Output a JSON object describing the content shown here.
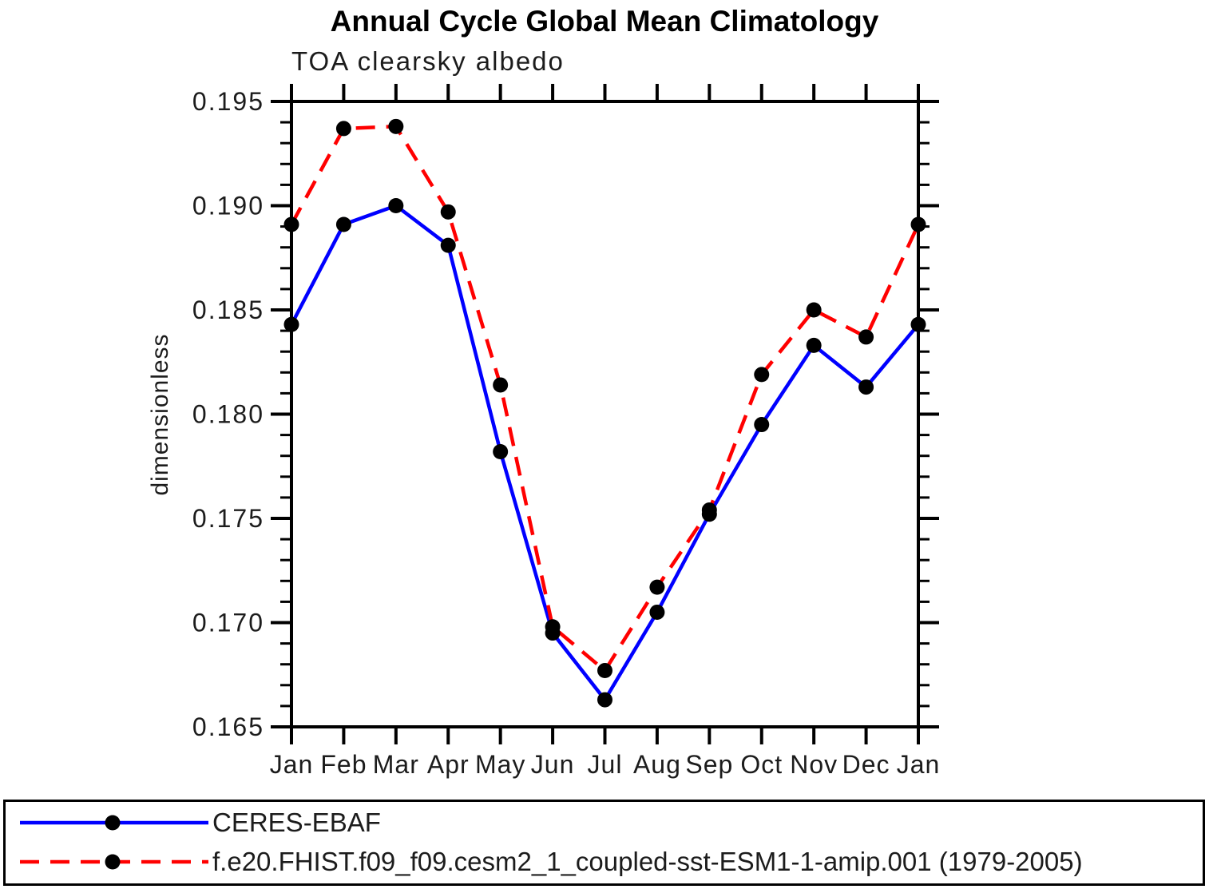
{
  "chart_data": {
    "type": "line",
    "title": "Annual Cycle Global Mean Climatology",
    "subtitle": "TOA clearsky albedo",
    "ylabel": "dimensionless",
    "xlabel": "",
    "categories": [
      "Jan",
      "Feb",
      "Mar",
      "Apr",
      "May",
      "Jun",
      "Jul",
      "Aug",
      "Sep",
      "Oct",
      "Nov",
      "Dec",
      "Jan"
    ],
    "ylim": [
      0.165,
      0.195
    ],
    "ytick_major_interval": 0.005,
    "ytick_minor_interval": 0.001,
    "ytick_labels": [
      "0.195",
      "0.190",
      "0.185",
      "0.180",
      "0.175",
      "0.170",
      "0.165"
    ],
    "grid": "off",
    "legend_position": "bottom",
    "marker": "filled-circle",
    "marker_color": "#000000",
    "axis_color": "#000000",
    "series": [
      {
        "name": "CERES-EBAF",
        "color": "#0000ff",
        "style": "solid",
        "values": [
          0.1843,
          0.1891,
          0.19,
          0.1881,
          0.1782,
          0.1695,
          0.1663,
          0.1705,
          0.1752,
          0.1795,
          0.1833,
          0.1813,
          0.1843
        ]
      },
      {
        "name": "f.e20.FHIST.f09_f09.cesm2_1_coupled-sst-ESM1-1-amip.001 (1979-2005)",
        "color": "#ff0000",
        "style": "dashed",
        "values": [
          0.1891,
          0.1937,
          0.1938,
          0.1897,
          0.1814,
          0.1698,
          0.1677,
          0.1717,
          0.1754,
          0.1819,
          0.185,
          0.1837,
          0.1891
        ]
      }
    ]
  }
}
